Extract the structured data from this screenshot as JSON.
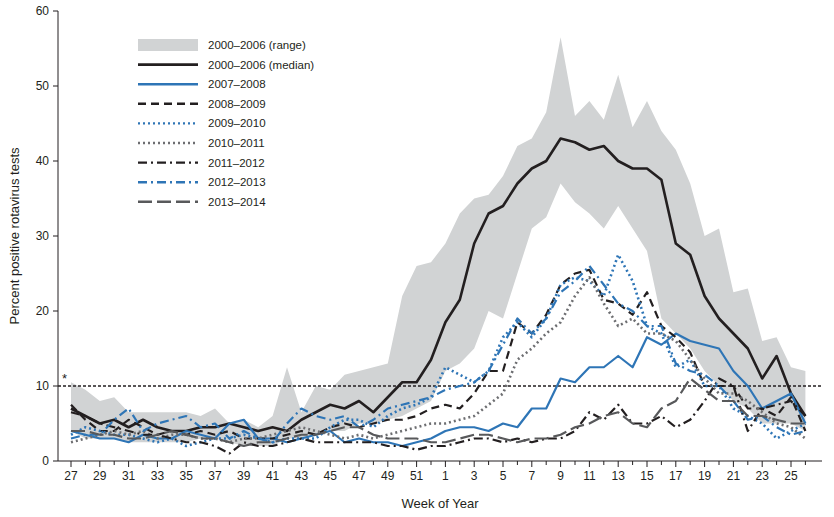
{
  "chart_data": {
    "type": "line",
    "x_label": "Week of Year",
    "y_label": "Percent positive rotavirus tests",
    "categories": [
      "27",
      null,
      "29",
      null,
      "31",
      null,
      "33",
      null,
      "35",
      null,
      "37",
      null,
      "39",
      null,
      "41",
      null,
      "43",
      null,
      "45",
      null,
      "47",
      null,
      "49",
      null,
      "51",
      null,
      "1",
      null,
      "3",
      null,
      "5",
      null,
      "7",
      null,
      "9",
      null,
      "11",
      null,
      "13",
      null,
      "15",
      null,
      "17",
      null,
      "19",
      null,
      "21",
      null,
      "23",
      null,
      "25",
      null
    ],
    "ylim": [
      0,
      60
    ],
    "yticks": [
      0,
      10,
      20,
      30,
      40,
      50,
      60
    ],
    "grid": false,
    "legend": "top-left",
    "annotations": [
      {
        "text": "*",
        "y": 10
      }
    ],
    "series": [
      {
        "name": "2000–2006 (range)",
        "type": "area",
        "color": "#d1d3d4",
        "values": [
          10.5,
          9.5,
          8,
          8.5,
          6.5,
          6.5,
          6.5,
          6.5,
          6.5,
          6,
          7,
          5,
          5.5,
          4.5,
          6,
          12.5,
          6.5,
          10,
          9.5,
          11.5,
          12,
          12.5,
          13,
          22,
          26,
          26.5,
          29,
          33,
          35,
          35.5,
          38,
          42,
          43,
          46.5,
          56.5,
          46,
          48,
          45.5,
          51.5,
          44.5,
          48,
          44,
          41.5,
          37,
          30,
          31,
          22.5,
          23,
          16,
          16.5,
          12.5,
          12
        ],
        "low": [
          4,
          3,
          3,
          3,
          2.5,
          2.5,
          2.5,
          2.5,
          2.5,
          3,
          3,
          2.5,
          2,
          2,
          2,
          3,
          3,
          3.5,
          4,
          4,
          5,
          5,
          5.5,
          6,
          7,
          8,
          12,
          13,
          15,
          20,
          19,
          25,
          31,
          32.5,
          37,
          34.5,
          33,
          31,
          34,
          31,
          28,
          19,
          17,
          15,
          12,
          10,
          8,
          7,
          5,
          5,
          5,
          4
        ]
      },
      {
        "name": "2000–2006 (median)",
        "color": "#231f20",
        "line_style": "solid",
        "values": [
          7,
          6,
          5,
          5.5,
          4.5,
          5.5,
          4.5,
          4,
          4,
          4.5,
          4.5,
          5,
          4.5,
          4,
          4.5,
          4,
          5.5,
          6.5,
          7.5,
          7,
          8,
          6.5,
          8.5,
          10.5,
          10.5,
          13.5,
          18.5,
          21.5,
          29,
          33,
          34,
          37,
          39,
          40,
          43,
          42.5,
          41.5,
          42,
          40,
          39,
          39,
          37.5,
          29,
          27.5,
          22,
          19,
          17,
          15,
          11,
          14,
          9,
          6
        ]
      },
      {
        "name": "2007–2008",
        "color": "#2e75b6",
        "line_style": "solid",
        "values": [
          4,
          3.5,
          3,
          3,
          2.5,
          3.5,
          3,
          3,
          4,
          3.5,
          3,
          5,
          5.5,
          3,
          3,
          2.5,
          3,
          3.5,
          4,
          2.5,
          3,
          2.5,
          2.5,
          2,
          2.5,
          3,
          4,
          4.5,
          4.5,
          4,
          5,
          4.5,
          7,
          7,
          11,
          10.5,
          12.5,
          12.5,
          14,
          12.5,
          16.5,
          15.5,
          17,
          16,
          15.5,
          15,
          12,
          10,
          7,
          8,
          9,
          5
        ]
      },
      {
        "name": "2008–2009",
        "color": "#231f20",
        "line_style": "dashed",
        "values": [
          7.5,
          5.5,
          4,
          4,
          5.5,
          4.5,
          3.5,
          4,
          3.5,
          4,
          3.5,
          4,
          3,
          3,
          3,
          3.5,
          4,
          3.5,
          4.5,
          5,
          4.5,
          5,
          5.5,
          5.5,
          6,
          7,
          7.5,
          7,
          9,
          12,
          12,
          18.5,
          17,
          19.5,
          23.5,
          25,
          25.5,
          21.5,
          21,
          19.5,
          22.5,
          18,
          16.5,
          14.5,
          10,
          10,
          10,
          7,
          7,
          6,
          8.5,
          4
        ]
      },
      {
        "name": "2009–2010",
        "color": "#2e75b6",
        "line_style": "dotted",
        "values": [
          3.5,
          4.5,
          4,
          3.5,
          3.5,
          3,
          2.5,
          3,
          2,
          2.5,
          3,
          3,
          3.5,
          3,
          2.5,
          3,
          3,
          3,
          4.5,
          5.5,
          5.5,
          4.5,
          6,
          7,
          7.5,
          8.5,
          12.5,
          11.5,
          10.5,
          12,
          16.5,
          18.5,
          16.5,
          19,
          23.5,
          24.5,
          24,
          22,
          27.5,
          24,
          18,
          17,
          12.5,
          13.5,
          10,
          10,
          7,
          6,
          5,
          3,
          4,
          5
        ]
      },
      {
        "name": "2010–2011",
        "color": "#6d6e71",
        "line_style": "dotted",
        "values": [
          2.5,
          3,
          3.5,
          4,
          3.5,
          4,
          3,
          3.5,
          3.5,
          3,
          3,
          2.5,
          3,
          3,
          3.5,
          4,
          4.5,
          4,
          3.5,
          3,
          3.5,
          3,
          3.5,
          4,
          4.5,
          5,
          5,
          5.5,
          6,
          7.5,
          9,
          13.5,
          15,
          17,
          18.5,
          22,
          24.5,
          21,
          18,
          19,
          17,
          17,
          16,
          13.5,
          11,
          9,
          9,
          8,
          6.5,
          5,
          4.5,
          3
        ]
      },
      {
        "name": "2011–2012",
        "color": "#231f20",
        "line_style": "dashdot",
        "values": [
          6.5,
          6,
          5,
          4.5,
          4,
          3.5,
          3.5,
          3,
          2.5,
          2.5,
          2,
          1,
          2.5,
          2,
          2,
          2.5,
          3,
          2.5,
          2.5,
          2.5,
          2.5,
          2.5,
          2,
          2,
          1.5,
          2,
          2,
          2.5,
          3,
          3,
          2.5,
          3,
          2.5,
          3,
          3,
          4,
          6.5,
          5.5,
          7.5,
          5,
          5,
          6,
          4.5,
          5.5,
          8,
          11,
          10,
          4,
          7,
          7.5,
          8,
          6
        ]
      },
      {
        "name": "2012–2013",
        "color": "#2e75b6",
        "line_style": "dashdot",
        "values": [
          3,
          3.5,
          3.5,
          5.5,
          7,
          4,
          5,
          5.5,
          6,
          4.5,
          5,
          3,
          4,
          3,
          2.5,
          5,
          7,
          6,
          5.5,
          6,
          4.5,
          5.5,
          7,
          7.5,
          8,
          8.5,
          9.5,
          10,
          10.5,
          12,
          15.5,
          19,
          17,
          19,
          22.5,
          24,
          26,
          23.5,
          21,
          20,
          18,
          18,
          13,
          12,
          11.5,
          10,
          8,
          5.5,
          6,
          4.5,
          3.5,
          4
        ]
      },
      {
        "name": "2013–2014",
        "color": "#58595b",
        "line_style": "longdash",
        "values": [
          4,
          4,
          3.5,
          3.5,
          3,
          3,
          3.5,
          4,
          3.5,
          3,
          3,
          2.5,
          2,
          2.5,
          2.5,
          3,
          3.5,
          3.5,
          4,
          4.5,
          4.5,
          3.5,
          3,
          3,
          3,
          2.5,
          2.5,
          3,
          3.5,
          3.5,
          3,
          2.5,
          3,
          3,
          3.5,
          4.5,
          5,
          6,
          6.5,
          5,
          4.5,
          7,
          8,
          11,
          9.5,
          8,
          8,
          6,
          6,
          5.5,
          5,
          5
        ]
      }
    ]
  }
}
